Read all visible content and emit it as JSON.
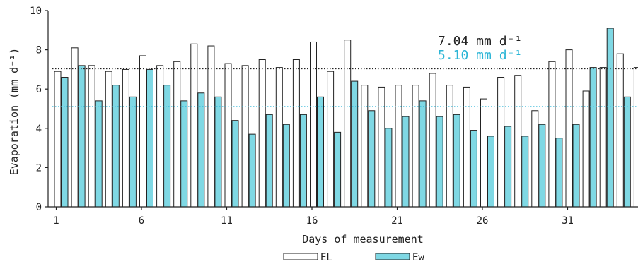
{
  "chart_data": {
    "type": "bar",
    "xlabel": "Days of measurement",
    "ylabel": "Evaporation (mm d⁻¹)",
    "ylim": [
      0,
      10
    ],
    "yticks": [
      "0",
      "2",
      "4",
      "6",
      "8",
      "10"
    ],
    "x_tick_days": [
      1,
      6,
      11,
      16,
      21,
      26,
      31
    ],
    "x_tick_labels": [
      "1",
      "6",
      "11",
      "16",
      "21",
      "26",
      "31"
    ],
    "days": [
      1,
      2,
      3,
      4,
      5,
      6,
      7,
      8,
      9,
      10,
      11,
      12,
      13,
      14,
      15,
      16,
      17,
      18,
      19,
      20,
      21,
      22,
      23,
      24,
      25,
      26,
      27,
      28,
      29,
      30,
      31,
      32,
      33,
      34,
      35
    ],
    "series": [
      {
        "name": "EL",
        "color": "#ffffff",
        "values": [
          6.9,
          8.1,
          7.2,
          6.9,
          7.0,
          7.7,
          7.2,
          7.4,
          8.3,
          8.2,
          7.3,
          7.2,
          7.5,
          7.1,
          7.5,
          8.4,
          6.9,
          8.5,
          6.2,
          6.1,
          6.2,
          6.2,
          6.8,
          6.2,
          6.1,
          5.5,
          6.6,
          6.7,
          4.9,
          7.4,
          8.0,
          5.9,
          7.1,
          7.8,
          7.1
        ]
      },
      {
        "name": "Ew",
        "color": "#7fd8e4",
        "values": [
          6.6,
          7.2,
          5.4,
          6.2,
          5.6,
          7.0,
          6.2,
          5.4,
          5.8,
          5.6,
          4.4,
          3.7,
          4.7,
          4.2,
          4.7,
          5.6,
          3.8,
          6.4,
          4.9,
          4.0,
          4.6,
          5.4,
          4.6,
          4.7,
          3.9,
          3.6,
          4.1,
          3.6,
          4.2,
          3.5,
          4.2,
          7.1,
          9.1,
          5.6,
          null
        ]
      }
    ],
    "reference_lines": [
      {
        "value": 7.04,
        "label": "7.04 mm d⁻¹",
        "color": "#222222",
        "style": "dotted"
      },
      {
        "value": 5.1,
        "label": "5.10 mm d⁻¹",
        "color": "#2bb5d6",
        "style": "dotted"
      }
    ],
    "legend": {
      "placement": "bottom-center",
      "items": [
        "EL",
        "Ew"
      ]
    },
    "grid": false
  }
}
